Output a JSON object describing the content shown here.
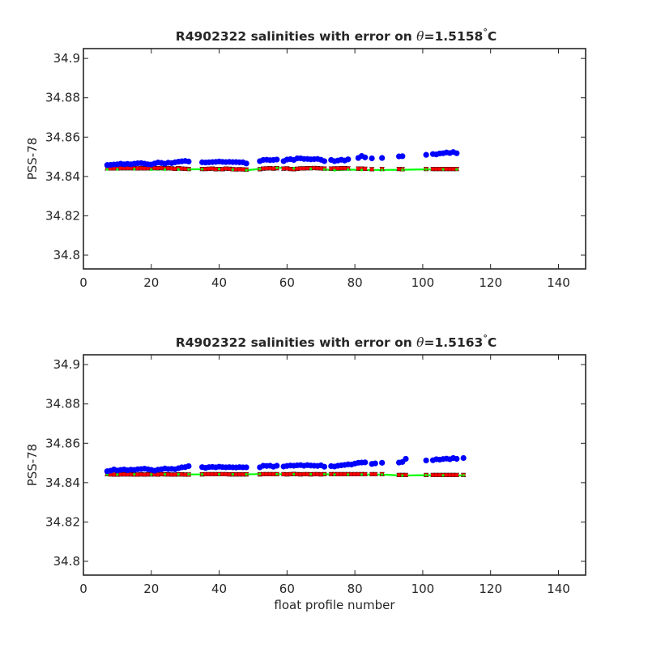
{
  "colors": {
    "float_points": "#0000ff",
    "mapped_salinity": "#ff0000",
    "fit_line": "#00ff00",
    "error_bars": "#000000",
    "axes": "#262626"
  },
  "chart_data": [
    {
      "type": "scatter",
      "title_prefix": "R4902322 salinities with error on ",
      "title_symbol": "θ",
      "title_value": "=1.5158",
      "title_degree": "°",
      "title_unit": "C",
      "xlabel": "",
      "ylabel": "PSS-78",
      "xlim": [
        0,
        148
      ],
      "ylim": [
        34.793,
        34.905
      ],
      "xticks": [
        0,
        20,
        40,
        60,
        80,
        100,
        120,
        140
      ],
      "yticks": [
        34.8,
        34.82,
        34.84,
        34.86,
        34.88,
        34.9
      ],
      "ytick_labels": [
        "34.8",
        "34.82",
        "34.84",
        "34.86",
        "34.88",
        "34.9"
      ],
      "grid": false,
      "series": [
        {
          "x": [
            7,
            8,
            9,
            10,
            11,
            12,
            13,
            14,
            15,
            16,
            17,
            18,
            19,
            20,
            21,
            22,
            23,
            24,
            25,
            26,
            27,
            28,
            29,
            30,
            31,
            35,
            36,
            37,
            38,
            39,
            40,
            41,
            42,
            43,
            44,
            45,
            46,
            47,
            48,
            52,
            53,
            54,
            55,
            56,
            57,
            59,
            60,
            61,
            62,
            63,
            64,
            65,
            66,
            67,
            68,
            69,
            70,
            71,
            73,
            74,
            75,
            76,
            77,
            78,
            81,
            82,
            83,
            85,
            88,
            93,
            94,
            101,
            103,
            104,
            105,
            106,
            107,
            108,
            109,
            110
          ],
          "y": [
            34.8458,
            34.8459,
            34.8461,
            34.8462,
            34.8465,
            34.8462,
            34.8464,
            34.8462,
            34.8465,
            34.8467,
            34.8468,
            34.8465,
            34.8462,
            34.8461,
            34.8466,
            34.8471,
            34.8469,
            34.8465,
            34.847,
            34.8468,
            34.8472,
            34.8475,
            34.8477,
            34.8479,
            34.8476,
            34.8472,
            34.8471,
            34.8472,
            34.8473,
            34.8474,
            34.8476,
            34.8474,
            34.8473,
            34.8474,
            34.8473,
            34.8473,
            34.8472,
            34.8472,
            34.8466,
            34.8478,
            34.8484,
            34.8485,
            34.8483,
            34.8484,
            34.8486,
            34.8478,
            34.8486,
            34.8488,
            34.8484,
            34.8492,
            34.8492,
            34.8489,
            34.8489,
            34.8487,
            34.8488,
            34.8489,
            34.8485,
            34.8478,
            34.8484,
            34.8478,
            34.8481,
            34.8485,
            34.8481,
            34.8487,
            34.8494,
            34.8504,
            34.8497,
            34.8492,
            34.8494,
            34.8502,
            34.8503,
            34.851,
            34.8514,
            34.8512,
            34.8517,
            34.8518,
            34.8522,
            34.8519,
            34.8524,
            34.8518
          ]
        },
        {
          "x": [
            7,
            8,
            9,
            10,
            11,
            12,
            13,
            14,
            15,
            16,
            17,
            18,
            19,
            20,
            21,
            22,
            23,
            24,
            25,
            26,
            27,
            28,
            29,
            30,
            31,
            35,
            36,
            37,
            38,
            39,
            40,
            41,
            42,
            43,
            44,
            45,
            46,
            47,
            48,
            52,
            53,
            54,
            55,
            56,
            57,
            59,
            60,
            61,
            62,
            63,
            64,
            65,
            66,
            67,
            68,
            69,
            70,
            71,
            73,
            74,
            75,
            76,
            77,
            78,
            81,
            82,
            83,
            85,
            88,
            93,
            94,
            101,
            103,
            104,
            105,
            106,
            107,
            108,
            109,
            110
          ],
          "y": [
            34.8441,
            34.8441,
            34.8441,
            34.8441,
            34.8442,
            34.8442,
            34.8442,
            34.8442,
            34.8442,
            34.8441,
            34.8442,
            34.8441,
            34.8442,
            34.8442,
            34.8443,
            34.8442,
            34.8443,
            34.8441,
            34.8442,
            34.8441,
            34.8439,
            34.8442,
            34.844,
            34.8439,
            34.8438,
            34.8438,
            34.8438,
            34.8439,
            34.844,
            34.8437,
            34.8438,
            34.8437,
            34.844,
            34.8439,
            34.8437,
            34.8436,
            34.8437,
            34.8436,
            34.8435,
            34.8437,
            34.844,
            34.8441,
            34.8442,
            34.844,
            34.8442,
            34.844,
            34.8441,
            34.8438,
            34.8437,
            34.8439,
            34.8441,
            34.8441,
            34.8442,
            34.8442,
            34.8443,
            34.8442,
            34.8441,
            34.844,
            34.844,
            34.8441,
            34.8441,
            34.8442,
            34.8442,
            34.8441,
            34.844,
            34.844,
            34.8439,
            34.8437,
            34.8438,
            34.8438,
            34.8437,
            34.8438,
            34.8438,
            34.8438,
            34.8438,
            34.8438,
            34.8438,
            34.8438,
            34.8438,
            34.8438
          ]
        },
        {
          "x": [
            7,
            10,
            15,
            20,
            24,
            28,
            31,
            35,
            40,
            44,
            48,
            52,
            57,
            62,
            67,
            71,
            74,
            78,
            82,
            88,
            94,
            101,
            106,
            110
          ],
          "y": [
            34.8436,
            34.8436,
            34.8437,
            34.8435,
            34.8435,
            34.8436,
            34.8436,
            34.8437,
            34.8438,
            34.8435,
            34.8432,
            34.8438,
            34.8444,
            34.8441,
            34.8439,
            34.8436,
            34.8432,
            34.8435,
            34.8433,
            34.8433,
            34.8434,
            34.8436,
            34.8436,
            34.8436
          ]
        }
      ]
    },
    {
      "type": "scatter",
      "title_prefix": "R4902322 salinities with error on ",
      "title_symbol": "θ",
      "title_value": "=1.5163",
      "title_degree": "°",
      "title_unit": "C",
      "xlabel": "float profile number",
      "ylabel": "PSS-78",
      "xlim": [
        0,
        148
      ],
      "ylim": [
        34.793,
        34.905
      ],
      "xticks": [
        0,
        20,
        40,
        60,
        80,
        100,
        120,
        140
      ],
      "yticks": [
        34.8,
        34.82,
        34.84,
        34.86,
        34.88,
        34.9
      ],
      "ytick_labels": [
        "34.8",
        "34.82",
        "34.84",
        "34.86",
        "34.88",
        "34.9"
      ],
      "grid": false,
      "series": [
        {
          "x": [
            7,
            8,
            9,
            10,
            11,
            12,
            13,
            14,
            15,
            16,
            17,
            18,
            19,
            20,
            21,
            22,
            23,
            24,
            25,
            26,
            27,
            28,
            29,
            30,
            31,
            35,
            36,
            37,
            38,
            39,
            40,
            41,
            42,
            43,
            44,
            45,
            46,
            47,
            48,
            52,
            53,
            54,
            55,
            56,
            57,
            59,
            60,
            61,
            62,
            63,
            64,
            65,
            66,
            67,
            68,
            69,
            70,
            71,
            73,
            74,
            75,
            76,
            77,
            78,
            79,
            80,
            81,
            82,
            83,
            85,
            86,
            88,
            93,
            94,
            95,
            101,
            103,
            104,
            105,
            106,
            107,
            108,
            109,
            110,
            112
          ],
          "y": [
            34.8458,
            34.8461,
            34.8467,
            34.8462,
            34.8465,
            34.8467,
            34.8463,
            34.8466,
            34.8465,
            34.8468,
            34.8469,
            34.8471,
            34.8468,
            34.8465,
            34.8461,
            34.8466,
            34.8468,
            34.8472,
            34.8469,
            34.847,
            34.8468,
            34.8473,
            34.8478,
            34.8479,
            34.8484,
            34.8479,
            34.8475,
            34.8479,
            34.848,
            34.8478,
            34.8481,
            34.8479,
            34.8478,
            34.8479,
            34.8478,
            34.8477,
            34.8479,
            34.8478,
            34.8478,
            34.8478,
            34.8486,
            34.8485,
            34.8486,
            34.8481,
            34.8486,
            34.8482,
            34.8485,
            34.8487,
            34.8486,
            34.8488,
            34.8489,
            34.8486,
            34.8489,
            34.8487,
            34.8486,
            34.8485,
            34.8488,
            34.8481,
            34.8484,
            34.8482,
            34.8486,
            34.8488,
            34.849,
            34.8493,
            34.8492,
            34.8497,
            34.8501,
            34.8502,
            34.8503,
            34.8495,
            34.8498,
            34.8501,
            34.8502,
            34.8505,
            34.8521,
            34.8513,
            34.8514,
            34.8519,
            34.8517,
            34.852,
            34.8522,
            34.8519,
            34.8525,
            34.8521,
            34.8525
          ]
        },
        {
          "x": [
            7,
            8,
            9,
            10,
            11,
            12,
            13,
            14,
            15,
            16,
            17,
            18,
            19,
            20,
            21,
            22,
            23,
            24,
            25,
            26,
            27,
            28,
            29,
            30,
            31,
            35,
            36,
            37,
            38,
            39,
            40,
            41,
            42,
            43,
            44,
            45,
            46,
            47,
            48,
            52,
            53,
            54,
            55,
            56,
            57,
            59,
            60,
            61,
            62,
            63,
            64,
            65,
            66,
            67,
            68,
            69,
            70,
            71,
            73,
            74,
            75,
            76,
            77,
            78,
            79,
            80,
            81,
            82,
            83,
            85,
            86,
            88,
            93,
            94,
            95,
            101,
            103,
            104,
            105,
            106,
            107,
            108,
            109,
            110,
            112
          ],
          "y": [
            34.8443,
            34.8442,
            34.8441,
            34.8441,
            34.8442,
            34.8442,
            34.8442,
            34.8442,
            34.8441,
            34.8441,
            34.8442,
            34.8441,
            34.8442,
            34.8442,
            34.8442,
            34.8441,
            34.8443,
            34.8442,
            34.8442,
            34.8441,
            34.8441,
            34.8442,
            34.8442,
            34.8441,
            34.8441,
            34.8442,
            34.8443,
            34.8443,
            34.8443,
            34.8443,
            34.8443,
            34.8443,
            34.8443,
            34.8442,
            34.8442,
            34.8442,
            34.8442,
            34.8442,
            34.8442,
            34.8442,
            34.8443,
            34.8443,
            34.8443,
            34.8443,
            34.8443,
            34.8443,
            34.8442,
            34.8443,
            34.8444,
            34.8443,
            34.8442,
            34.8443,
            34.8443,
            34.8442,
            34.8443,
            34.8443,
            34.8442,
            34.8443,
            34.8443,
            34.8443,
            34.8443,
            34.8443,
            34.8443,
            34.8443,
            34.8443,
            34.8443,
            34.8443,
            34.8443,
            34.8443,
            34.8443,
            34.8443,
            34.8443,
            34.8439,
            34.8439,
            34.8439,
            34.8439,
            34.8439,
            34.8439,
            34.8439,
            34.8439,
            34.8439,
            34.8439,
            34.8439,
            34.8439,
            34.8439
          ]
        },
        {
          "x": [
            7,
            10,
            15,
            20,
            24,
            28,
            31,
            35,
            40,
            44,
            48,
            52,
            57,
            62,
            67,
            71,
            74,
            78,
            82,
            88,
            94,
            101,
            106,
            112
          ],
          "y": [
            34.8441,
            34.8441,
            34.8442,
            34.8441,
            34.8442,
            34.8442,
            34.8442,
            34.8442,
            34.8442,
            34.8442,
            34.8442,
            34.8444,
            34.8443,
            34.8443,
            34.8443,
            34.8443,
            34.8441,
            34.8441,
            34.8441,
            34.8441,
            34.8436,
            34.8438,
            34.8437,
            34.8437
          ]
        }
      ]
    }
  ]
}
